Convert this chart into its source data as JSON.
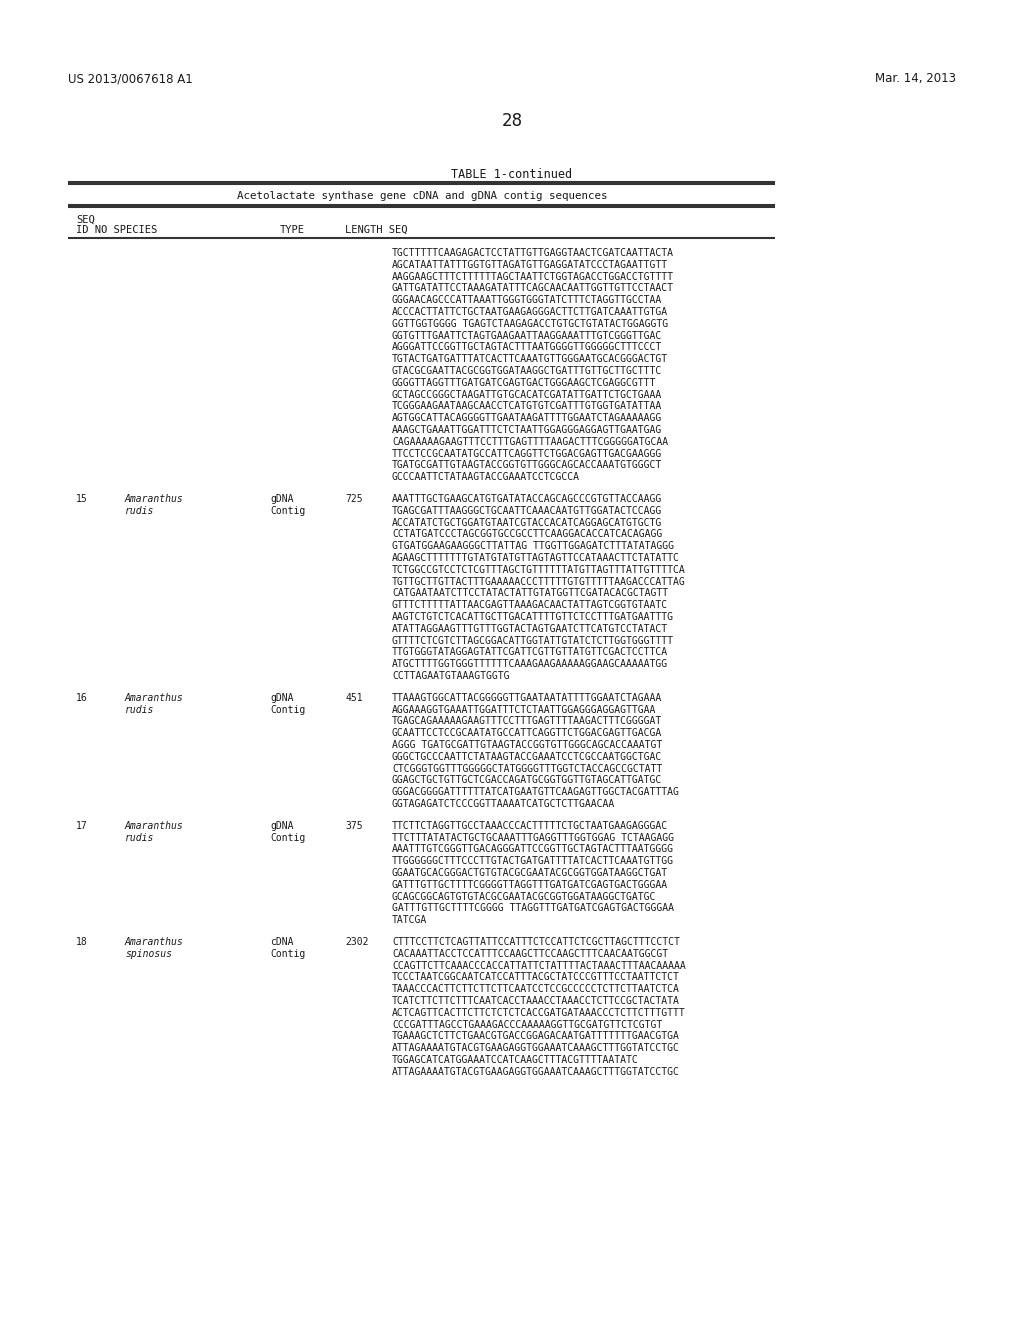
{
  "bg_color": "#ffffff",
  "page_width": 10.24,
  "page_height": 13.2,
  "header_left": "US 2013/0067618 A1",
  "header_right": "Mar. 14, 2013",
  "page_number": "28",
  "table_title": "TABLE 1-continued",
  "table_subtitle": "Acetolactate synthase gene cDNA and gDNA contig sequences",
  "text_color": "#1a1a1a",
  "line_color": "#333333",
  "sequences": [
    {
      "id": "",
      "species": "",
      "type": "",
      "length": "",
      "seq_lines": [
        "TGCTTTTTCAAGAGACTCCTATTGTTGAGGTAACTCGATCAATTACTA",
        "AGCATAATTATTTGGTGTTAGATGTTGAGGATATCCCTAGAATTGTT",
        "AAGGAAGCTTTCTTTTTTAGCTAATTCTGGTAGACCTGGACCTGTTTT",
        "GATTGATATTCCTAAAGATATTTCAGCAACAATTGGTTGTTCCTAACT",
        "GGGAACAGCCCATTAAATTGGGTGGGTATCTTTCTAGGTTGCCTAA",
        "ACCCACTTATTCTGCTAATGAAGAGGGACTTCTTGATCAAATTGTGA",
        "GGTTGGTGGGG TGAGTCTAAGAGACCTGTGCTGTATACTGGAGGTG",
        "GGTGTTTGAATTCTAGTGAAGAATTAAGGAAATTTGTCGGGTTGAC",
        "AGGGATTCCGGTTGCTAGTACTTTAATGGGGTTGGGGGCTTTCCCT",
        "TGTACTGATGATTTATCACTTCAAATGTTGGGAATGCACGGGACTGT",
        "GTACGCGAATTACGCGGTGGATAAGGCTGATTTGTTGCTTGCTTTC",
        "GGGGTTAGGTTTGATGATCGAGTGACTGGGAAGCTCGAGGCGTTT",
        "GCTAGCCGGGCTAAGATTGTGCACATCGATATTGATTCTGCTGAAA",
        "TCGGGAAGAATAAGCAACCTCATGTGTCGATTTGTGGTGATATTAA",
        "AGTGGCATTACAGGGGTTGAATAAGATTTTGGAATCTAGAAAAAGG",
        "AAAGCTGAAATTGGATTTCTCTAATTGGAGGGAGGAGTTGAATGAG",
        "CAGAAAAAGAAGTTTCCTTTGAGTTTTAAGACTTTCGGGGGATGCAA",
        "TTCCTCCGCAATATGCCATTCAGGTTCTGGACGAGTTGACGAAGGG",
        "TGATGCGATTGTAAGTACCGGTGTTGGGCAGCACCAAATGTGGGCT",
        "GCCCAATTCTATAAGTACCGAAATCCTCGCCA"
      ]
    },
    {
      "id": "15",
      "species_line1": "Amaranthus",
      "species_line2": "rudis",
      "type_line1": "gDNA",
      "type_line2": "Contig",
      "length": "725",
      "seq_lines": [
        "AAATTTGCTGAAGCATGTGATATACCAGCAGCCCGTGTTACCAAGG",
        "TGAGCGATTTAAGGGCTGCAATTCAAACAATGTTGGATACTCCAGG",
        "ACCATATCTGCTGGATGTAATCGTACCACATCAGGAGCATGTGCTG",
        "CCTATGATCCCTAGCGGTGCCGCCTTCAAGGACACCATCACAGAGG",
        "GTGATGGAAGAAGGGCTTATTAG TTGGTTGGAGATCTTTATATAGGG",
        "AGAAGCTTTTTTTGTATGTATGTTAGTAGTTCCATAAACTTCTATATTC",
        "TCTGGCCGTCCTCTCGTTTAGCTGTTTTTTATGTTAGTTTATTGTTTTCA",
        "TGTTGCTTGTTACTTTGAAAAACCCTTTTTGTGTTTTTAAGACCCATTAG",
        "CATGAATAATCTTCCTATACTATTGTATGGTTCGATACACGCTAGTT",
        "GTTTCTTTTTATTAACGAGTTAAAGACAACTATTAGTCGGTGTAATC",
        "AAGTCTGTCTCACATTGCTTGACATTTTGTTCTCCTTTGATGAATTTG",
        "ATATTAGGAAGTTTGTTTGGTACTAGTGAATCTTCATGTCCTATACT",
        "GTTTTCTCGTCTTAGCGGACATTGGTATTGTATCTCTTGGTGGGTTTT",
        "TTGTGGGTATAGGAGTATTCGATTCGTTGTTATGTTCGACTCCTTCA",
        "ATGCTTTTGGTGGGTTTTTTCAAAGAAGAAAAAGGAAGCAAAAATGG",
        "CCTTAGAATGTAAAGTGGTG"
      ]
    },
    {
      "id": "16",
      "species_line1": "Amaranthus",
      "species_line2": "rudis",
      "type_line1": "gDNA",
      "type_line2": "Contig",
      "length": "451",
      "seq_lines": [
        "TTAAAGTGGCATTACGGGGGTTGAATAATATTTTGGAATCTAGAAA",
        "AGGAAAGGTGAAATTGGATTTCTCTAATTGGAGGGAGGAGTTGAA",
        "TGAGCAGAAAAAGAAGTTTCCTTTGAGTTTTAAGACTTTCGGGGAT",
        "GCAATTCCTCCGCAATATGCCATTCAGGTTCTGGACGAGTTGACGA",
        "AGGG TGATGCGATTGTAAGTACCGGTGTTGGGCAGCACCAAATGT",
        "GGGCTGCCCAATTCTATAAGTACCGAAATCCTCGCCAATGGCTGAC",
        "CTCGGGTGGTTTGGGGGCTATGGGGTTTGGTCTACCAGCCGCTATT",
        "GGAGCTGCTGTTGCTCGACCAGATGCGGTGGTTGTAGCATTGATGC",
        "GGGACGGGGATTTTTTATCATGAATGTTCAAGAGTTGGCTACGATTTAG",
        "GGTAGAGATCTCCCGGTTAAAATCATGCTCTTGAACAA"
      ]
    },
    {
      "id": "17",
      "species_line1": "Amaranthus",
      "species_line2": "rudis",
      "type_line1": "gDNA",
      "type_line2": "Contig",
      "length": "375",
      "seq_lines": [
        "TTCTTCTAGGTTGCCTAAACCCACTTTTTCTGCTAATGAAGAGGGAC",
        "TTCTTTATATACTGCTGCAAATTTGAGGTTTGGTGGAG TCTAAGAGG",
        "AAATTTGTCGGGTTGACAGGGATTCCGGTTGCTAGTACTTTAATGGGG",
        "TTGGGGGGCTTTCCCTTGTACTGATGATTTTATCACTTCAAATGTTGG",
        "GGAATGCACGGGACTGTGTACGCGAATACGCGGTGGATAAGGCTGAT",
        "GATTTGTTGCTTTTCGGGGTTAGGTTTGATGATCGAGTGACTGGGAA",
        "GCAGCGGCAGTGTGTACGCGAATACGCGGTGGATAAGGCTGATGC",
        "GATTTGTTGCTTTTCGGGG TTAGGTTTGATGATCGAGTGACTGGGAA",
        "TATCGA"
      ]
    },
    {
      "id": "18",
      "species_line1": "Amaranthus",
      "species_line2": "spinosus",
      "type_line1": "cDNA",
      "type_line2": "Contig",
      "length": "2302",
      "seq_lines": [
        "CTTTCCTTCTCAGTTATTCCATTTCTCCATTCTCGCTTAGCTTTCCTCT",
        "CACAAATTACCTCCATTTCCAAGCTTCCAAGCTTTCAACAATGGCGT",
        "CCAGTTCTTCAAACCCACCATTATTCTATTTTACTAAACTTTAACAAAAA",
        "TCCCTAATCGGCAATCATCCATTTACGCTATCCCGTTTCCTAATTCTCT",
        "TAAACCCACTTCTTCTTCTTCAATCCTCCGCCCCCTCTTCTTAATCTCA",
        "TCATCTTCTTCTTTCAATCACCTAAACCTAAACCTCTTCCGCTACTATA",
        "ACTCAGTTCACTTCTTCTCTCTCACCGATGATAAACCCTCTTCTTTGTTT",
        "CCCGATTTAGCCTGAAAGACCCAAAAAGGTTGCGATGTTCTCGTGT",
        "TGAAAGCTCTTCTGAACGTGACCGGAGACAATGATTTTTTTGAACGTGA",
        "ATTAGAAAATGTACGTGAAGAGGTGGAAATCAAAGCTTTGGTATCCTGC",
        "TGGAGCATCATGGAAATCCATCAAGCTTTACGTTTTAATATC",
        "ATTAGAAAATGTACGTGAAGAGGTGGAAATCAAAGCTTTGGTATCCTGC"
      ]
    }
  ]
}
